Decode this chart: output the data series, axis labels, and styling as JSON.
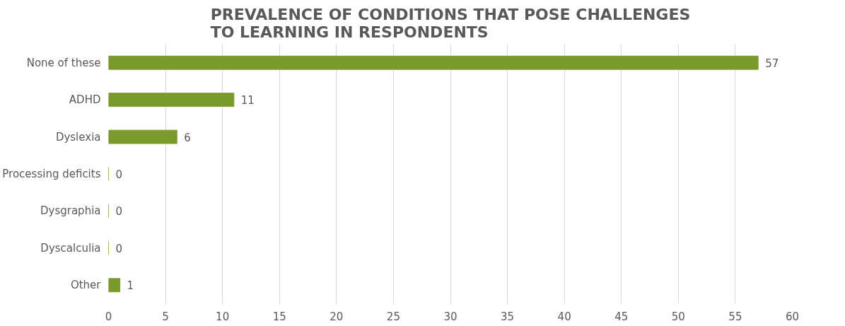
{
  "chart_data": {
    "type": "bar",
    "orientation": "horizontal",
    "title": "PREVALENCE OF CONDITIONS THAT POSE CHALLENGES\nTO LEARNING IN RESPONDENTS",
    "categories": [
      "None of these",
      "ADHD",
      "Dyslexia",
      "Processing deficits",
      "Dysgraphia",
      "Dyscalculia",
      "Other"
    ],
    "values": [
      57,
      11,
      6,
      0,
      0,
      0,
      1
    ],
    "color": "#7a9a2e",
    "xlim": [
      0,
      60
    ],
    "xticks": [
      0,
      5,
      10,
      15,
      20,
      25,
      30,
      35,
      40,
      45,
      50,
      55,
      60
    ],
    "grid": "x",
    "data_labels": true
  }
}
